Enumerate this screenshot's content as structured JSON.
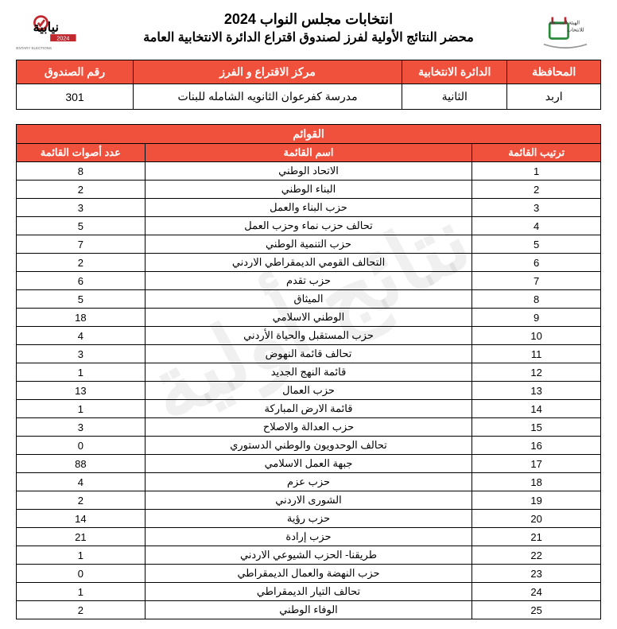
{
  "watermark": "نتائج أولية",
  "header": {
    "title1": "انتخابات مجلس النواب 2024",
    "title2": "محضر النتائج الأولية لفرز لصندوق اقتراع الدائرة الانتخابية العامة"
  },
  "info": {
    "headers": {
      "governorate": "المحافظة",
      "district": "الدائرة الانتخابية",
      "center": "مركز الاقتراع و الفرز",
      "box": "رقم الصندوق"
    },
    "values": {
      "governorate": "اربد",
      "district": "الثانية",
      "center": "مدرسة كفرعوان الثانويه الشامله للبنات",
      "box": "301"
    }
  },
  "lists": {
    "caption": "القوائم",
    "headers": {
      "rank": "ترتيب القائمة",
      "name": "اسم القائمة",
      "votes": "عدد أصوات القائمة"
    },
    "rows": [
      {
        "rank": "1",
        "name": "الاتحاد الوطني",
        "votes": "8"
      },
      {
        "rank": "2",
        "name": "البناء الوطني",
        "votes": "2"
      },
      {
        "rank": "3",
        "name": "حزب البناء والعمل",
        "votes": "3"
      },
      {
        "rank": "4",
        "name": "تحالف حزب نماء وحزب العمل",
        "votes": "5"
      },
      {
        "rank": "5",
        "name": "حزب التنمية الوطني",
        "votes": "7"
      },
      {
        "rank": "6",
        "name": "التحالف القومي الديمقراطي الاردني",
        "votes": "2"
      },
      {
        "rank": "7",
        "name": "حزب تقدم",
        "votes": "6"
      },
      {
        "rank": "8",
        "name": "الميثاق",
        "votes": "5"
      },
      {
        "rank": "9",
        "name": "الوطني الاسلامي",
        "votes": "18"
      },
      {
        "rank": "10",
        "name": "حزب المستقبل والحياة الأردني",
        "votes": "4"
      },
      {
        "rank": "11",
        "name": "تحالف قائمة النهوض",
        "votes": "3"
      },
      {
        "rank": "12",
        "name": "قائمة النهج الجديد",
        "votes": "1"
      },
      {
        "rank": "13",
        "name": "حزب العمال",
        "votes": "13"
      },
      {
        "rank": "14",
        "name": "قائمة الارض المباركة",
        "votes": "1"
      },
      {
        "rank": "15",
        "name": "حزب العدالة والاصلاح",
        "votes": "3"
      },
      {
        "rank": "16",
        "name": "تحالف الوحدويون والوطني الدستوري",
        "votes": "0"
      },
      {
        "rank": "17",
        "name": "جبهة العمل الاسلامي",
        "votes": "88"
      },
      {
        "rank": "18",
        "name": "حزب عزم",
        "votes": "4"
      },
      {
        "rank": "19",
        "name": "الشورى الاردني",
        "votes": "2"
      },
      {
        "rank": "20",
        "name": "حزب رؤية",
        "votes": "14"
      },
      {
        "rank": "21",
        "name": "حزب إرادة",
        "votes": "21"
      },
      {
        "rank": "22",
        "name": "طريقنا- الحزب الشيوعي الاردني",
        "votes": "1"
      },
      {
        "rank": "23",
        "name": "حزب النهضة والعمال الديمقراطي",
        "votes": "0"
      },
      {
        "rank": "24",
        "name": "تحالف التيار الديمقراطي",
        "votes": "1"
      },
      {
        "rank": "25",
        "name": "الوفاء الوطني",
        "votes": "2"
      }
    ]
  },
  "colors": {
    "accent": "#f0513c",
    "text_on_accent": "#ffffff",
    "border": "#000000",
    "background": "#ffffff"
  }
}
